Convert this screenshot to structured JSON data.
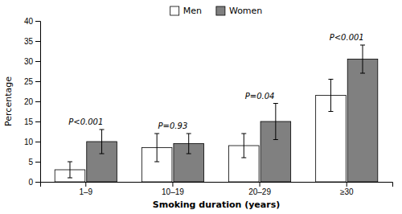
{
  "chart_data": {
    "type": "bar",
    "xlabel": "Smoking duration (years)",
    "ylabel": "Percentage",
    "categories": [
      "1–9",
      "10–19",
      "20–29",
      "≥30"
    ],
    "series": [
      {
        "name": "Men",
        "color": "white",
        "values": [
          3.0,
          8.5,
          9.0,
          21.5
        ],
        "errors": [
          2.0,
          3.5,
          3.0,
          4.0
        ]
      },
      {
        "name": "Women",
        "color": "#808080",
        "values": [
          10.0,
          9.5,
          15.0,
          30.5
        ],
        "errors": [
          3.0,
          2.5,
          4.5,
          3.5
        ]
      }
    ],
    "annotations": [
      "P<0.001",
      "P=0.93",
      "P=0.04",
      "P<0.001"
    ],
    "ylim": [
      0,
      40
    ],
    "yticks": [
      0,
      5,
      10,
      15,
      20,
      25,
      30,
      35,
      40
    ],
    "grid": false,
    "legend": "top"
  }
}
